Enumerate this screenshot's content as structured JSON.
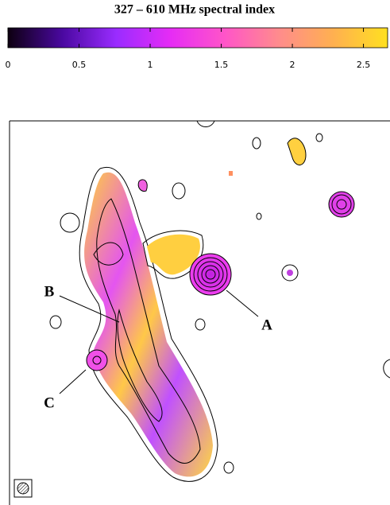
{
  "chart_data": {
    "type": "colorbar",
    "title": "327 – 610 MHz spectral index",
    "xlim": [
      0,
      2.67
    ],
    "xticks": [
      0,
      0.5,
      1,
      1.5,
      2,
      2.5
    ],
    "colors": [
      "#0d0010",
      "#4a08a0",
      "#9a2cff",
      "#e62cf5",
      "#ff55c8",
      "#ff8c8c",
      "#ffb050",
      "#ffe020"
    ],
    "annotations": [
      "A",
      "B",
      "C"
    ]
  }
}
